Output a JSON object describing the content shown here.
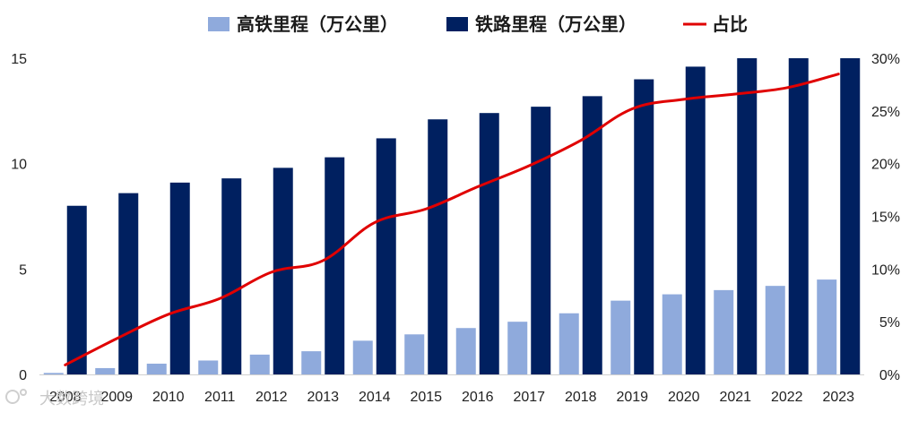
{
  "chart_data": {
    "type": "bar",
    "categories": [
      "2008",
      "2009",
      "2010",
      "2011",
      "2012",
      "2013",
      "2014",
      "2015",
      "2016",
      "2017",
      "2018",
      "2019",
      "2020",
      "2021",
      "2022",
      "2023"
    ],
    "series": [
      {
        "name": "高铁里程（万公里）",
        "kind": "bar",
        "axis": "left",
        "color": "#8faadc",
        "values": [
          0.07,
          0.3,
          0.51,
          0.66,
          0.94,
          1.1,
          1.6,
          1.9,
          2.2,
          2.5,
          2.9,
          3.5,
          3.8,
          4.0,
          4.2,
          4.5
        ]
      },
      {
        "name": "铁路里程（万公里）",
        "kind": "bar",
        "axis": "left",
        "color": "#002060",
        "values": [
          8.0,
          8.6,
          9.1,
          9.3,
          9.8,
          10.3,
          11.2,
          12.1,
          12.4,
          12.7,
          13.2,
          14.0,
          14.6,
          15.0,
          15.0,
          15.0
        ]
      },
      {
        "name": "占比",
        "kind": "line",
        "axis": "right",
        "color": "#e00000",
        "values": [
          0.9,
          3.4,
          5.7,
          7.2,
          9.7,
          10.8,
          14.4,
          15.7,
          17.8,
          19.8,
          22.2,
          25.2,
          26.1,
          26.6,
          27.2,
          28.5
        ]
      }
    ],
    "yleft": {
      "min": 0,
      "max": 15,
      "ticks": [
        0,
        5,
        10,
        15
      ],
      "tick_labels": [
        "0",
        "5",
        "10",
        "15"
      ]
    },
    "yright": {
      "min": 0,
      "max": 30,
      "ticks": [
        0,
        5,
        10,
        15,
        20,
        25,
        30
      ],
      "tick_labels": [
        "0%",
        "5%",
        "10%",
        "15%",
        "20%",
        "25%",
        "30%"
      ]
    },
    "legend_position": "top-center",
    "grid": false
  },
  "watermark": "大数跨境"
}
